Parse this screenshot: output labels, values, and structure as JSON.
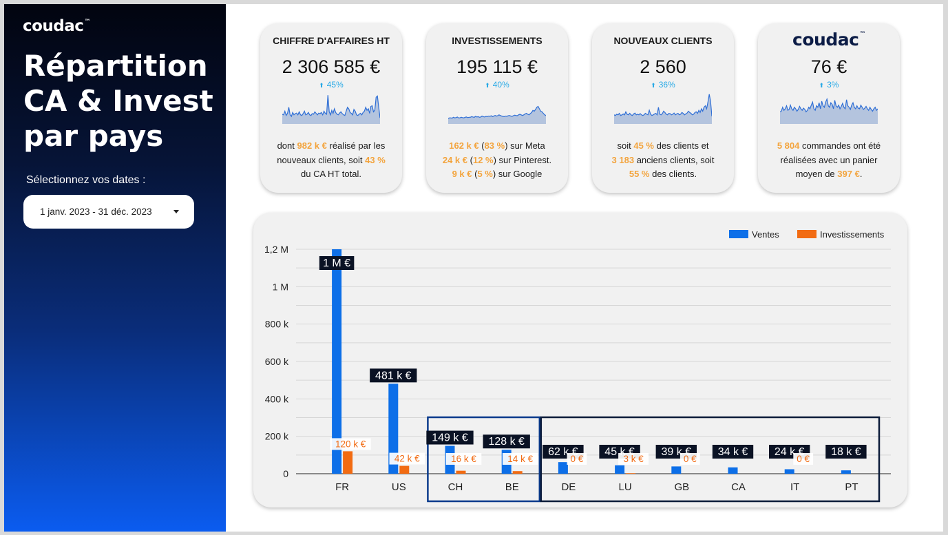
{
  "sidebar": {
    "logo": "coudac",
    "logo_tm": "™",
    "title_lines": [
      "Répartition",
      "CA & Invest",
      "par pays"
    ],
    "date_label": "Sélectionnez vos dates :",
    "date_range": "1 janv. 2023 - 31 déc. 2023"
  },
  "cards": [
    {
      "title": "CHIFFRE D'AFFAIRES HT",
      "value": "2 306 585 €",
      "delta": "45%",
      "spark": [
        0.32,
        0.3,
        0.42,
        0.28,
        0.35,
        0.55,
        0.3,
        0.25,
        0.38,
        0.3,
        0.34,
        0.36,
        0.3,
        0.4,
        0.3,
        0.28,
        0.34,
        0.42,
        0.3,
        0.32,
        0.38,
        0.3,
        0.28,
        0.34,
        0.32,
        0.4,
        0.35,
        0.3,
        0.36,
        0.34,
        0.38,
        0.3,
        0.42,
        0.35,
        0.32,
        0.95,
        0.4,
        0.3,
        0.45,
        0.35,
        0.5,
        0.38,
        0.32,
        0.3,
        0.36,
        0.4,
        0.34,
        0.3,
        0.28,
        0.42,
        0.55,
        0.5,
        0.38,
        0.35,
        0.3,
        0.48,
        0.42,
        0.3,
        0.28,
        0.32,
        0.35,
        0.3,
        0.38,
        0.42,
        0.55,
        0.45,
        0.5,
        0.35,
        0.58,
        0.6,
        0.4,
        0.45,
        0.88,
        0.92,
        0.55,
        0.2
      ],
      "desc": [
        [
          [
            "dont ",
            0
          ],
          [
            "982 k €",
            1
          ],
          [
            " réalisé par les",
            0
          ]
        ],
        [
          [
            "nouveaux clients, soit ",
            0
          ],
          [
            "43 %",
            1
          ]
        ],
        [
          [
            "du CA HT total.",
            0
          ]
        ]
      ]
    },
    {
      "title": "INVESTISSEMENTS",
      "value": "195 115 €",
      "delta": "40%",
      "spark": [
        0.18,
        0.2,
        0.2,
        0.19,
        0.22,
        0.2,
        0.21,
        0.23,
        0.2,
        0.2,
        0.22,
        0.21,
        0.2,
        0.22,
        0.23,
        0.21,
        0.22,
        0.22,
        0.24,
        0.23,
        0.22,
        0.25,
        0.23,
        0.24,
        0.22,
        0.23,
        0.26,
        0.24,
        0.23,
        0.25,
        0.24,
        0.26,
        0.25,
        0.27,
        0.24,
        0.26,
        0.28,
        0.26,
        0.27,
        0.3,
        0.28,
        0.26,
        0.25,
        0.24,
        0.26,
        0.25,
        0.27,
        0.28,
        0.26,
        0.25,
        0.27,
        0.29,
        0.28,
        0.27,
        0.3,
        0.32,
        0.3,
        0.28,
        0.3,
        0.33,
        0.35,
        0.32,
        0.3,
        0.34,
        0.38,
        0.45,
        0.42,
        0.48,
        0.55,
        0.58,
        0.5,
        0.42,
        0.4,
        0.35,
        0.3,
        0.28
      ],
      "desc": [
        [
          [
            "162 k €",
            1
          ],
          [
            " (",
            0
          ],
          [
            "83 %",
            1
          ],
          [
            ") sur Meta",
            0
          ]
        ],
        [
          [
            "24 k €",
            1
          ],
          [
            " (",
            0
          ],
          [
            "12 %",
            1
          ],
          [
            ") sur Pinterest.",
            0
          ]
        ],
        [
          [
            "9 k €",
            1
          ],
          [
            " (",
            0
          ],
          [
            "5 %",
            1
          ],
          [
            ") sur Google",
            0
          ]
        ]
      ]
    },
    {
      "title": "NOUVEAUX CLIENTS",
      "value": "2 560",
      "delta": "36%",
      "spark": [
        0.3,
        0.28,
        0.32,
        0.3,
        0.35,
        0.28,
        0.3,
        0.33,
        0.3,
        0.4,
        0.32,
        0.3,
        0.35,
        0.3,
        0.28,
        0.33,
        0.36,
        0.3,
        0.32,
        0.3,
        0.34,
        0.3,
        0.28,
        0.3,
        0.35,
        0.32,
        0.3,
        0.45,
        0.32,
        0.28,
        0.3,
        0.33,
        0.35,
        0.3,
        0.55,
        0.32,
        0.3,
        0.34,
        0.42,
        0.38,
        0.32,
        0.3,
        0.35,
        0.34,
        0.3,
        0.32,
        0.36,
        0.3,
        0.33,
        0.35,
        0.3,
        0.32,
        0.38,
        0.35,
        0.3,
        0.33,
        0.36,
        0.42,
        0.38,
        0.35,
        0.3,
        0.32,
        0.38,
        0.4,
        0.35,
        0.45,
        0.38,
        0.5,
        0.42,
        0.55,
        0.6,
        0.5,
        0.72,
        0.98,
        0.75,
        0.25
      ],
      "desc": [
        [
          [
            "soit ",
            0
          ],
          [
            "45 %",
            1
          ],
          [
            " des clients et",
            0
          ]
        ],
        [
          [
            "3 183",
            1
          ],
          [
            " anciens clients, soit",
            0
          ]
        ],
        [
          [
            "55 %",
            1
          ],
          [
            " des clients.",
            0
          ]
        ]
      ]
    },
    {
      "logo": "coudac",
      "logo_tm": "™",
      "value": "76 €",
      "delta": "3%",
      "spark": [
        0.4,
        0.42,
        0.55,
        0.45,
        0.5,
        0.6,
        0.45,
        0.48,
        0.62,
        0.5,
        0.45,
        0.55,
        0.5,
        0.42,
        0.48,
        0.58,
        0.5,
        0.45,
        0.52,
        0.48,
        0.4,
        0.45,
        0.55,
        0.5,
        0.62,
        0.72,
        0.5,
        0.45,
        0.6,
        0.55,
        0.7,
        0.5,
        0.75,
        0.6,
        0.55,
        0.72,
        0.82,
        0.6,
        0.55,
        0.7,
        0.65,
        0.5,
        0.78,
        0.6,
        0.55,
        0.62,
        0.5,
        0.58,
        0.68,
        0.55,
        0.5,
        0.8,
        0.6,
        0.55,
        0.48,
        0.62,
        0.7,
        0.55,
        0.5,
        0.6,
        0.52,
        0.5,
        0.62,
        0.55,
        0.48,
        0.52,
        0.58,
        0.5,
        0.45,
        0.55,
        0.48,
        0.42,
        0.5,
        0.55,
        0.45,
        0.5
      ],
      "desc": [
        [
          [
            "5 804",
            1
          ],
          [
            " commandes ont été",
            0
          ]
        ],
        [
          [
            "réalisées avec un panier",
            0
          ]
        ],
        [
          [
            "moyen de ",
            0
          ],
          [
            "397 €",
            1
          ],
          [
            ".",
            0
          ]
        ]
      ]
    }
  ],
  "colors": {
    "ventes": "#0d6fe8",
    "investissements": "#f26b12",
    "highlight": "#f3a43d",
    "delta": "#27a9e6",
    "spark_fill": "#b4c4de",
    "spark_line": "#2f6fd6"
  },
  "chart_data": {
    "type": "bar",
    "categories": [
      "FR",
      "US",
      "CH",
      "BE",
      "DE",
      "LU",
      "GB",
      "CA",
      "IT",
      "PT"
    ],
    "series": [
      {
        "name": "Ventes",
        "values": [
          1200000,
          481000,
          149000,
          128000,
          62000,
          45000,
          39000,
          34000,
          24000,
          18000
        ],
        "labels": [
          "1 M €",
          "481 k €",
          "149 k €",
          "128 k €",
          "62 k €",
          "45 k €",
          "39 k €",
          "34 k €",
          "24 k €",
          "18 k €"
        ]
      },
      {
        "name": "Investissements",
        "values": [
          120000,
          42000,
          16000,
          14000,
          0,
          3000,
          0,
          0,
          0,
          0
        ],
        "labels": [
          "120 k €",
          "42 k €",
          "16 k €",
          "14 k €",
          "0 €",
          "3 k €",
          "0 €",
          "",
          "0 €",
          ""
        ]
      }
    ],
    "ylim": [
      0,
      1200000
    ],
    "yticks": [
      0,
      200000,
      400000,
      600000,
      800000,
      1000000,
      1200000
    ],
    "ytick_labels": [
      "0",
      "200 k",
      "400 k",
      "600 k",
      "800 k",
      "1 M",
      "1,2 M"
    ],
    "legend_position": "top-right",
    "grid": true,
    "groups": [
      {
        "name": "group-ch-be",
        "categories": [
          "CH",
          "BE"
        ]
      },
      {
        "name": "group-de-pt",
        "categories": [
          "DE",
          "LU",
          "GB",
          "CA",
          "IT",
          "PT"
        ]
      }
    ]
  }
}
